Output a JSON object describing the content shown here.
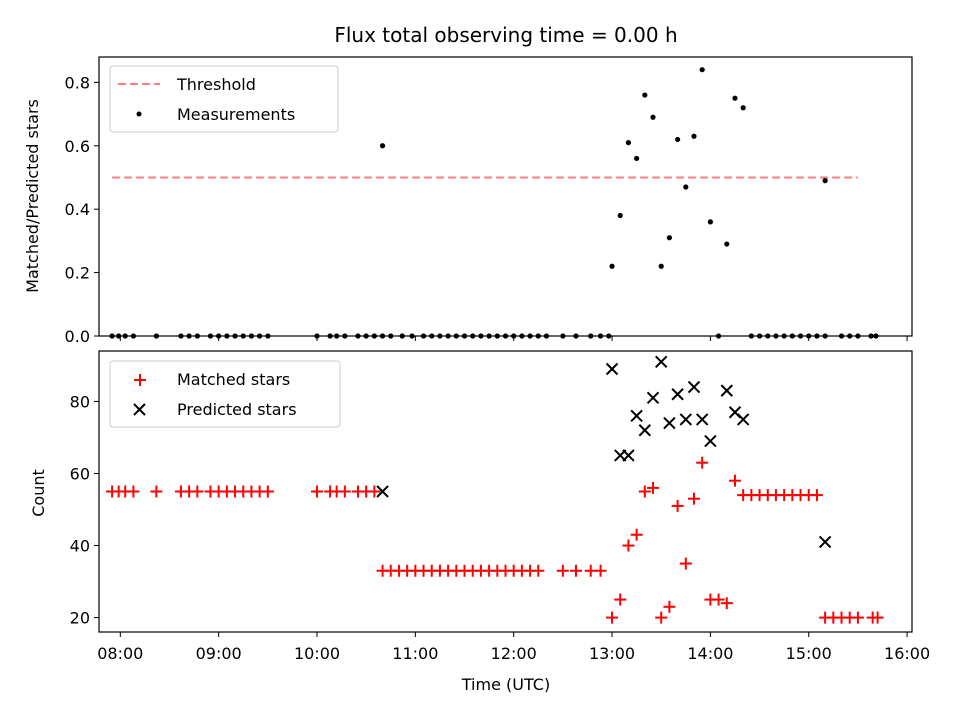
{
  "title": "Flux total observing time = 0.00 h",
  "colors": {
    "threshold": "#ff7f7f",
    "measurement": "#000000",
    "matched": "#ff0000",
    "predicted": "#000000"
  },
  "chart_data": [
    {
      "type": "scatter",
      "ylabel": "Matched/Predicted stars",
      "xlim": [
        "07:47",
        "16:03"
      ],
      "ylim": [
        0,
        0.88
      ],
      "yticks": [
        0.0,
        0.2,
        0.4,
        0.6,
        0.8
      ],
      "legend": {
        "position": "top-left",
        "entries": [
          "Threshold",
          "Measurements"
        ]
      },
      "threshold": {
        "name": "Threshold",
        "value": 0.5,
        "x": [
          "07:55",
          "15:30"
        ]
      },
      "series": [
        {
          "name": "Measurements",
          "points": [
            [
              "07:55",
              0
            ],
            [
              "07:59",
              0
            ],
            [
              "08:03",
              0
            ],
            [
              "08:08",
              0
            ],
            [
              "08:22",
              0
            ],
            [
              "08:37",
              0
            ],
            [
              "08:42",
              0
            ],
            [
              "08:47",
              0
            ],
            [
              "08:55",
              0
            ],
            [
              "09:00",
              0
            ],
            [
              "09:05",
              0
            ],
            [
              "09:10",
              0
            ],
            [
              "09:15",
              0
            ],
            [
              "09:20",
              0
            ],
            [
              "09:25",
              0
            ],
            [
              "09:30",
              0
            ],
            [
              "10:00",
              0
            ],
            [
              "10:08",
              0
            ],
            [
              "10:12",
              0
            ],
            [
              "10:17",
              0
            ],
            [
              "10:25",
              0
            ],
            [
              "10:30",
              0
            ],
            [
              "10:35",
              0
            ],
            [
              "10:40",
              0
            ],
            [
              "10:45",
              0
            ],
            [
              "10:40",
              0.6
            ],
            [
              "10:52",
              0
            ],
            [
              "10:58",
              0
            ],
            [
              "11:05",
              0
            ],
            [
              "11:10",
              0
            ],
            [
              "11:15",
              0
            ],
            [
              "11:20",
              0
            ],
            [
              "11:25",
              0
            ],
            [
              "11:30",
              0
            ],
            [
              "11:35",
              0
            ],
            [
              "11:40",
              0
            ],
            [
              "11:45",
              0
            ],
            [
              "11:50",
              0
            ],
            [
              "11:55",
              0
            ],
            [
              "12:00",
              0
            ],
            [
              "12:05",
              0
            ],
            [
              "12:10",
              0
            ],
            [
              "12:15",
              0
            ],
            [
              "12:20",
              0
            ],
            [
              "12:30",
              0
            ],
            [
              "12:38",
              0
            ],
            [
              "12:47",
              0
            ],
            [
              "12:53",
              0
            ],
            [
              "12:58",
              0
            ],
            [
              "13:00",
              0.22
            ],
            [
              "13:05",
              0.38
            ],
            [
              "13:10",
              0.61
            ],
            [
              "13:15",
              0.56
            ],
            [
              "13:20",
              0.76
            ],
            [
              "13:25",
              0.69
            ],
            [
              "13:30",
              0.22
            ],
            [
              "13:35",
              0.31
            ],
            [
              "13:40",
              0.62
            ],
            [
              "13:45",
              0.47
            ],
            [
              "13:50",
              0.63
            ],
            [
              "13:55",
              0.84
            ],
            [
              "14:00",
              0.36
            ],
            [
              "14:05",
              0.0
            ],
            [
              "14:10",
              0.29
            ],
            [
              "14:15",
              0.75
            ],
            [
              "14:20",
              0.72
            ],
            [
              "14:25",
              0
            ],
            [
              "14:30",
              0
            ],
            [
              "14:35",
              0
            ],
            [
              "14:40",
              0
            ],
            [
              "14:45",
              0
            ],
            [
              "14:50",
              0
            ],
            [
              "14:55",
              0
            ],
            [
              "15:00",
              0
            ],
            [
              "15:05",
              0
            ],
            [
              "15:10",
              0
            ],
            [
              "15:10",
              0.49
            ],
            [
              "15:20",
              0
            ],
            [
              "15:25",
              0
            ],
            [
              "15:30",
              0
            ],
            [
              "15:38",
              0
            ],
            [
              "15:41",
              0
            ]
          ]
        }
      ]
    },
    {
      "type": "scatter",
      "xlabel": "Time (UTC)",
      "ylabel": "Count",
      "xlim": [
        "07:47",
        "16:03"
      ],
      "ylim": [
        16,
        94
      ],
      "yticks": [
        20,
        40,
        60,
        80
      ],
      "xticks": [
        "08:00",
        "09:00",
        "10:00",
        "11:00",
        "12:00",
        "13:00",
        "14:00",
        "15:00",
        "16:00"
      ],
      "legend": {
        "position": "top-left",
        "entries": [
          "Matched stars",
          "Predicted stars"
        ]
      },
      "series": [
        {
          "name": "Matched stars",
          "marker": "plus",
          "points": [
            [
              "07:55",
              55
            ],
            [
              "07:59",
              55
            ],
            [
              "08:03",
              55
            ],
            [
              "08:08",
              55
            ],
            [
              "08:22",
              55
            ],
            [
              "08:37",
              55
            ],
            [
              "08:42",
              55
            ],
            [
              "08:47",
              55
            ],
            [
              "08:55",
              55
            ],
            [
              "09:00",
              55
            ],
            [
              "09:05",
              55
            ],
            [
              "09:10",
              55
            ],
            [
              "09:15",
              55
            ],
            [
              "09:20",
              55
            ],
            [
              "09:25",
              55
            ],
            [
              "09:30",
              55
            ],
            [
              "10:00",
              55
            ],
            [
              "10:08",
              55
            ],
            [
              "10:12",
              55
            ],
            [
              "10:17",
              55
            ],
            [
              "10:25",
              55
            ],
            [
              "10:30",
              55
            ],
            [
              "10:35",
              55
            ],
            [
              "10:40",
              33
            ],
            [
              "10:45",
              33
            ],
            [
              "10:50",
              33
            ],
            [
              "10:55",
              33
            ],
            [
              "11:00",
              33
            ],
            [
              "11:05",
              33
            ],
            [
              "11:10",
              33
            ],
            [
              "11:15",
              33
            ],
            [
              "11:20",
              33
            ],
            [
              "11:25",
              33
            ],
            [
              "11:30",
              33
            ],
            [
              "11:35",
              33
            ],
            [
              "11:40",
              33
            ],
            [
              "11:45",
              33
            ],
            [
              "11:50",
              33
            ],
            [
              "11:55",
              33
            ],
            [
              "12:00",
              33
            ],
            [
              "12:05",
              33
            ],
            [
              "12:10",
              33
            ],
            [
              "12:15",
              33
            ],
            [
              "12:30",
              33
            ],
            [
              "12:38",
              33
            ],
            [
              "12:47",
              33
            ],
            [
              "12:53",
              33
            ],
            [
              "13:00",
              20
            ],
            [
              "13:05",
              25
            ],
            [
              "13:10",
              40
            ],
            [
              "13:15",
              43
            ],
            [
              "13:20",
              55
            ],
            [
              "13:25",
              56
            ],
            [
              "13:30",
              20
            ],
            [
              "13:35",
              23
            ],
            [
              "13:40",
              51
            ],
            [
              "13:45",
              35
            ],
            [
              "13:50",
              53
            ],
            [
              "13:55",
              63
            ],
            [
              "14:00",
              25
            ],
            [
              "14:05",
              25
            ],
            [
              "14:10",
              24
            ],
            [
              "14:15",
              58
            ],
            [
              "14:20",
              54
            ],
            [
              "14:25",
              54
            ],
            [
              "14:30",
              54
            ],
            [
              "14:35",
              54
            ],
            [
              "14:40",
              54
            ],
            [
              "14:45",
              54
            ],
            [
              "14:50",
              54
            ],
            [
              "14:55",
              54
            ],
            [
              "15:00",
              54
            ],
            [
              "15:05",
              54
            ],
            [
              "15:10",
              20
            ],
            [
              "15:15",
              20
            ],
            [
              "15:20",
              20
            ],
            [
              "15:25",
              20
            ],
            [
              "15:30",
              20
            ],
            [
              "15:39",
              20
            ],
            [
              "15:42",
              20
            ]
          ]
        },
        {
          "name": "Predicted stars",
          "marker": "x",
          "points": [
            [
              "10:40",
              55
            ],
            [
              "13:00",
              89
            ],
            [
              "13:05",
              65
            ],
            [
              "13:10",
              65
            ],
            [
              "13:15",
              76
            ],
            [
              "13:20",
              72
            ],
            [
              "13:25",
              81
            ],
            [
              "13:30",
              91
            ],
            [
              "13:35",
              74
            ],
            [
              "13:40",
              82
            ],
            [
              "13:45",
              75
            ],
            [
              "13:50",
              84
            ],
            [
              "13:55",
              75
            ],
            [
              "14:00",
              69
            ],
            [
              "14:10",
              83
            ],
            [
              "14:15",
              77
            ],
            [
              "14:20",
              75
            ],
            [
              "15:10",
              41
            ]
          ]
        }
      ]
    }
  ]
}
